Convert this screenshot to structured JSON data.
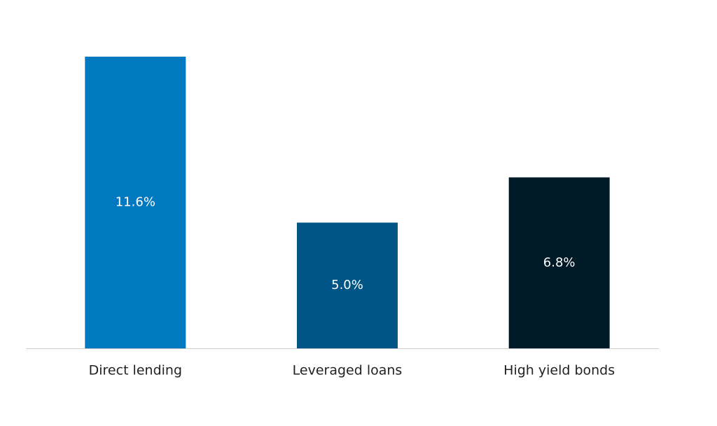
{
  "chart_data": {
    "type": "bar",
    "categories": [
      "Direct lending",
      "Leveraged loans",
      "High yield bonds"
    ],
    "values": [
      11.6,
      5.0,
      6.8
    ],
    "value_labels": [
      "11.6%",
      "5.0%",
      "6.8%"
    ],
    "colors": [
      "#0079c1",
      "#005587",
      "#001a28"
    ]
  }
}
